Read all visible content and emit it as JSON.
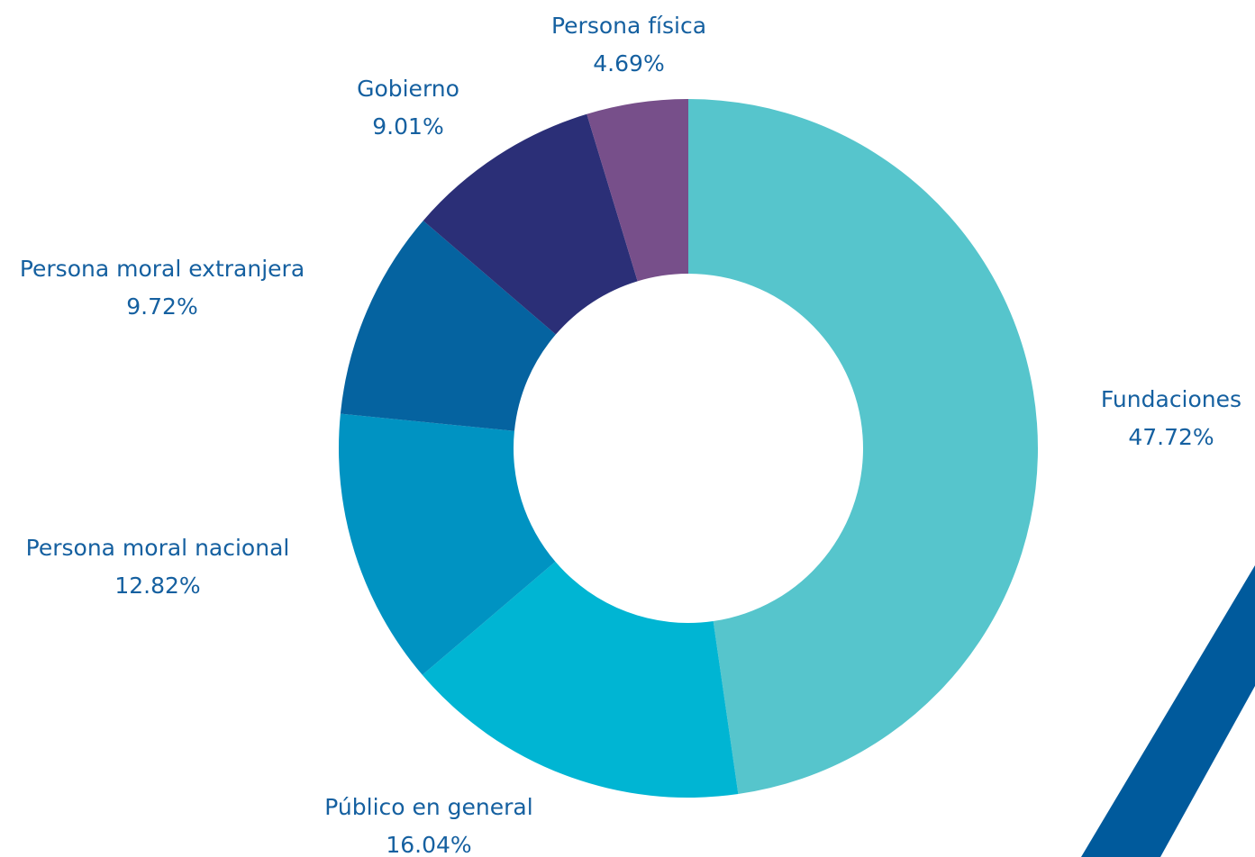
{
  "chart_data": {
    "type": "pie",
    "categories": [
      "Fundaciones",
      "Público en general",
      "Persona moral nacional",
      "Persona moral extranjera",
      "Gobierno",
      "Persona física"
    ],
    "values": [
      47.72,
      16.04,
      12.82,
      9.72,
      9.01,
      4.69
    ],
    "value_labels": [
      "47.72%",
      "16.04%",
      "12.82%",
      "9.72%",
      "9.01%",
      "4.69%"
    ],
    "colors": [
      "#56c5cc",
      "#00b5d3",
      "#0093c2",
      "#0563a0",
      "#2b2f77",
      "#774f8a"
    ]
  }
}
